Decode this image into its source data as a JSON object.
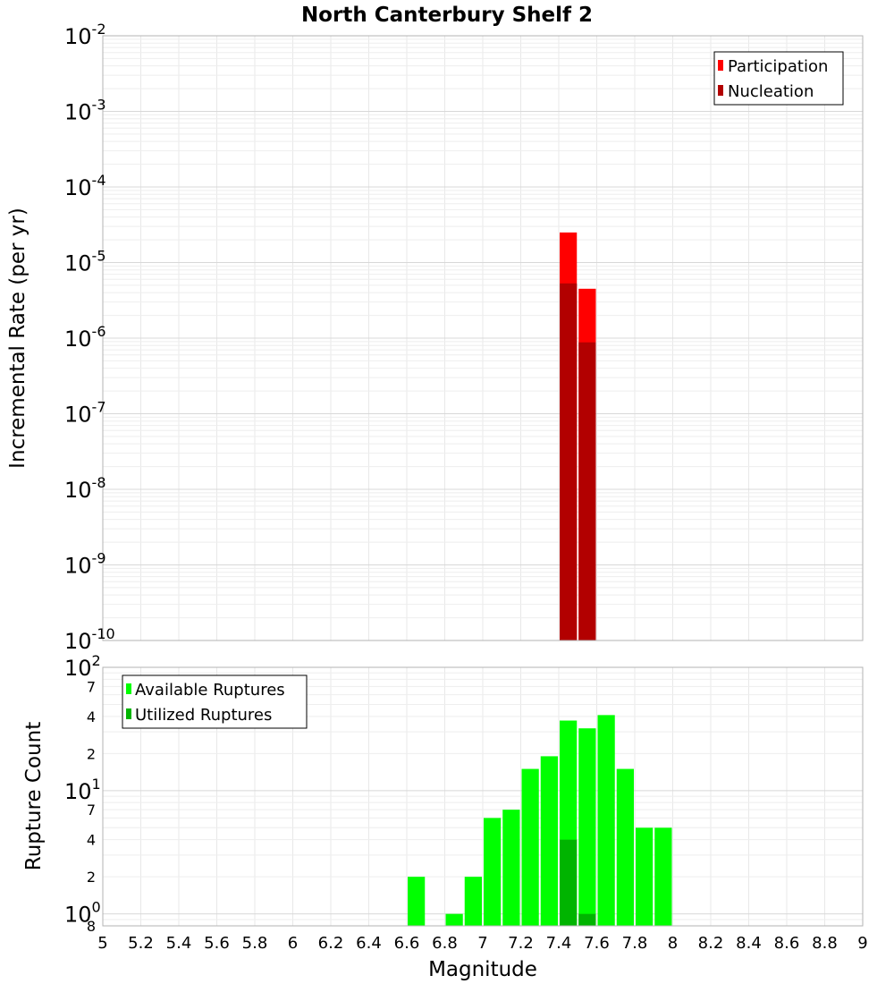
{
  "chart_data": [
    {
      "type": "bar",
      "title": "North Canterbury Shelf 2",
      "ylabel": "Incremental Rate (per yr)",
      "xlabel": "",
      "y_scale": "log",
      "ylim": [
        1e-10,
        0.01
      ],
      "xlim": [
        5,
        9
      ],
      "y_ticks": [
        {
          "base": "10",
          "exp": "-10"
        },
        {
          "base": "10",
          "exp": "-9"
        },
        {
          "base": "10",
          "exp": "-8"
        },
        {
          "base": "10",
          "exp": "-7"
        },
        {
          "base": "10",
          "exp": "-6"
        },
        {
          "base": "10",
          "exp": "-5"
        },
        {
          "base": "10",
          "exp": "-4"
        },
        {
          "base": "10",
          "exp": "-3"
        },
        {
          "base": "10",
          "exp": "-2"
        }
      ],
      "legend_position": "top-right",
      "series": [
        {
          "name": "Participation",
          "color": "#ff0000",
          "x": [
            7.45,
            7.55
          ],
          "values": [
            2.5e-05,
            4.5e-06
          ]
        },
        {
          "name": "Nucleation",
          "color": "#b20000",
          "x": [
            7.45,
            7.55
          ],
          "values": [
            5.3e-06,
            8.8e-07
          ]
        }
      ],
      "grid": true
    },
    {
      "type": "bar",
      "ylabel": "Rupture Count",
      "xlabel": "Magnitude",
      "y_scale": "log",
      "ylim": [
        0.8,
        100
      ],
      "xlim": [
        5,
        9
      ],
      "x_ticks": [
        "5",
        "5.2",
        "5.4",
        "5.6",
        "5.8",
        "6",
        "6.2",
        "6.4",
        "6.6",
        "6.8",
        "7",
        "7.2",
        "7.4",
        "7.6",
        "7.8",
        "8",
        "8.2",
        "8.4",
        "8.6",
        "8.8",
        "9"
      ],
      "y_major_ticks": [
        {
          "value": 1,
          "base": "10",
          "exp": "0"
        },
        {
          "value": 10,
          "base": "10",
          "exp": "1"
        },
        {
          "value": 100,
          "base": "10",
          "exp": "2"
        }
      ],
      "y_minor_ticks": [
        {
          "value": 0.8,
          "label": "8"
        },
        {
          "value": 2,
          "label": "2"
        },
        {
          "value": 4,
          "label": "4"
        },
        {
          "value": 7,
          "label": "7"
        },
        {
          "value": 20,
          "label": "2"
        },
        {
          "value": 40,
          "label": "4"
        },
        {
          "value": 70,
          "label": "7"
        }
      ],
      "legend_position": "top-left",
      "series": [
        {
          "name": "Available Ruptures",
          "color": "#00ff00",
          "x": [
            6.65,
            6.85,
            6.95,
            7.05,
            7.15,
            7.25,
            7.35,
            7.45,
            7.55,
            7.65,
            7.75,
            7.85,
            7.95
          ],
          "values": [
            2,
            1,
            2,
            6,
            7,
            15,
            19,
            37,
            32,
            41,
            15,
            5,
            5
          ]
        },
        {
          "name": "Utilized Ruptures",
          "color": "#00b400",
          "x": [
            7.45,
            7.55
          ],
          "values": [
            4,
            1
          ]
        }
      ],
      "grid": true
    }
  ]
}
